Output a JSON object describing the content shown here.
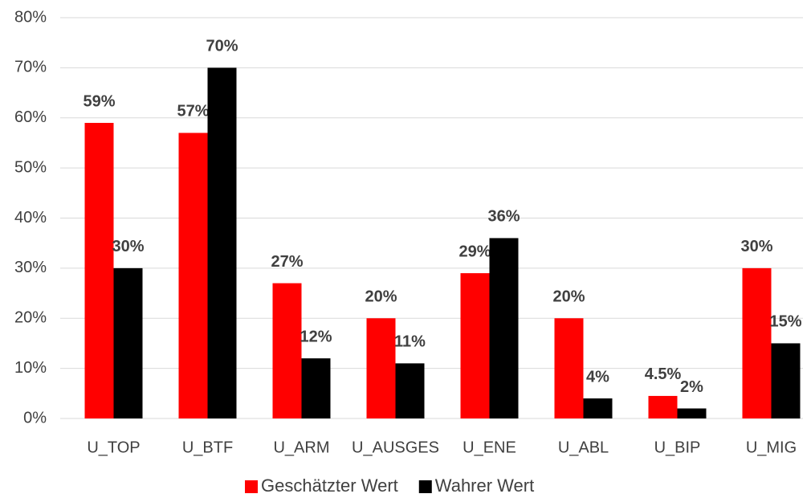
{
  "chart_data": {
    "type": "bar",
    "categories": [
      "U_TOP",
      "U_BTF",
      "U_ARM",
      "U_AUSGES",
      "U_ENE",
      "U_ABL",
      "U_BIP",
      "U_MIG"
    ],
    "series": [
      {
        "name": "Geschätzter Wert",
        "color": "#ff0000",
        "values": [
          59,
          57,
          27,
          20,
          29,
          20,
          4.5,
          30
        ],
        "value_labels": [
          "59%",
          "57%",
          "27%",
          "20%",
          "29%",
          "20%",
          "4.5%",
          "30%"
        ]
      },
      {
        "name": "Wahrer Wert",
        "color": "#000000",
        "values": [
          30,
          70,
          12,
          11,
          36,
          4,
          2,
          15
        ],
        "value_labels": [
          "30%",
          "70%",
          "12%",
          "11%",
          "36%",
          "4%",
          "2%",
          "15%"
        ]
      }
    ],
    "ylim": [
      0,
      80
    ],
    "yticks": [
      {
        "value": 0,
        "label": "0%"
      },
      {
        "value": 10,
        "label": "10%"
      },
      {
        "value": 20,
        "label": "20%"
      },
      {
        "value": 30,
        "label": "30%"
      },
      {
        "value": 40,
        "label": "40%"
      },
      {
        "value": 50,
        "label": "50%"
      },
      {
        "value": 60,
        "label": "60%"
      },
      {
        "value": 70,
        "label": "70%"
      },
      {
        "value": 80,
        "label": "80%"
      }
    ],
    "grid": true,
    "legend": "bottom"
  }
}
